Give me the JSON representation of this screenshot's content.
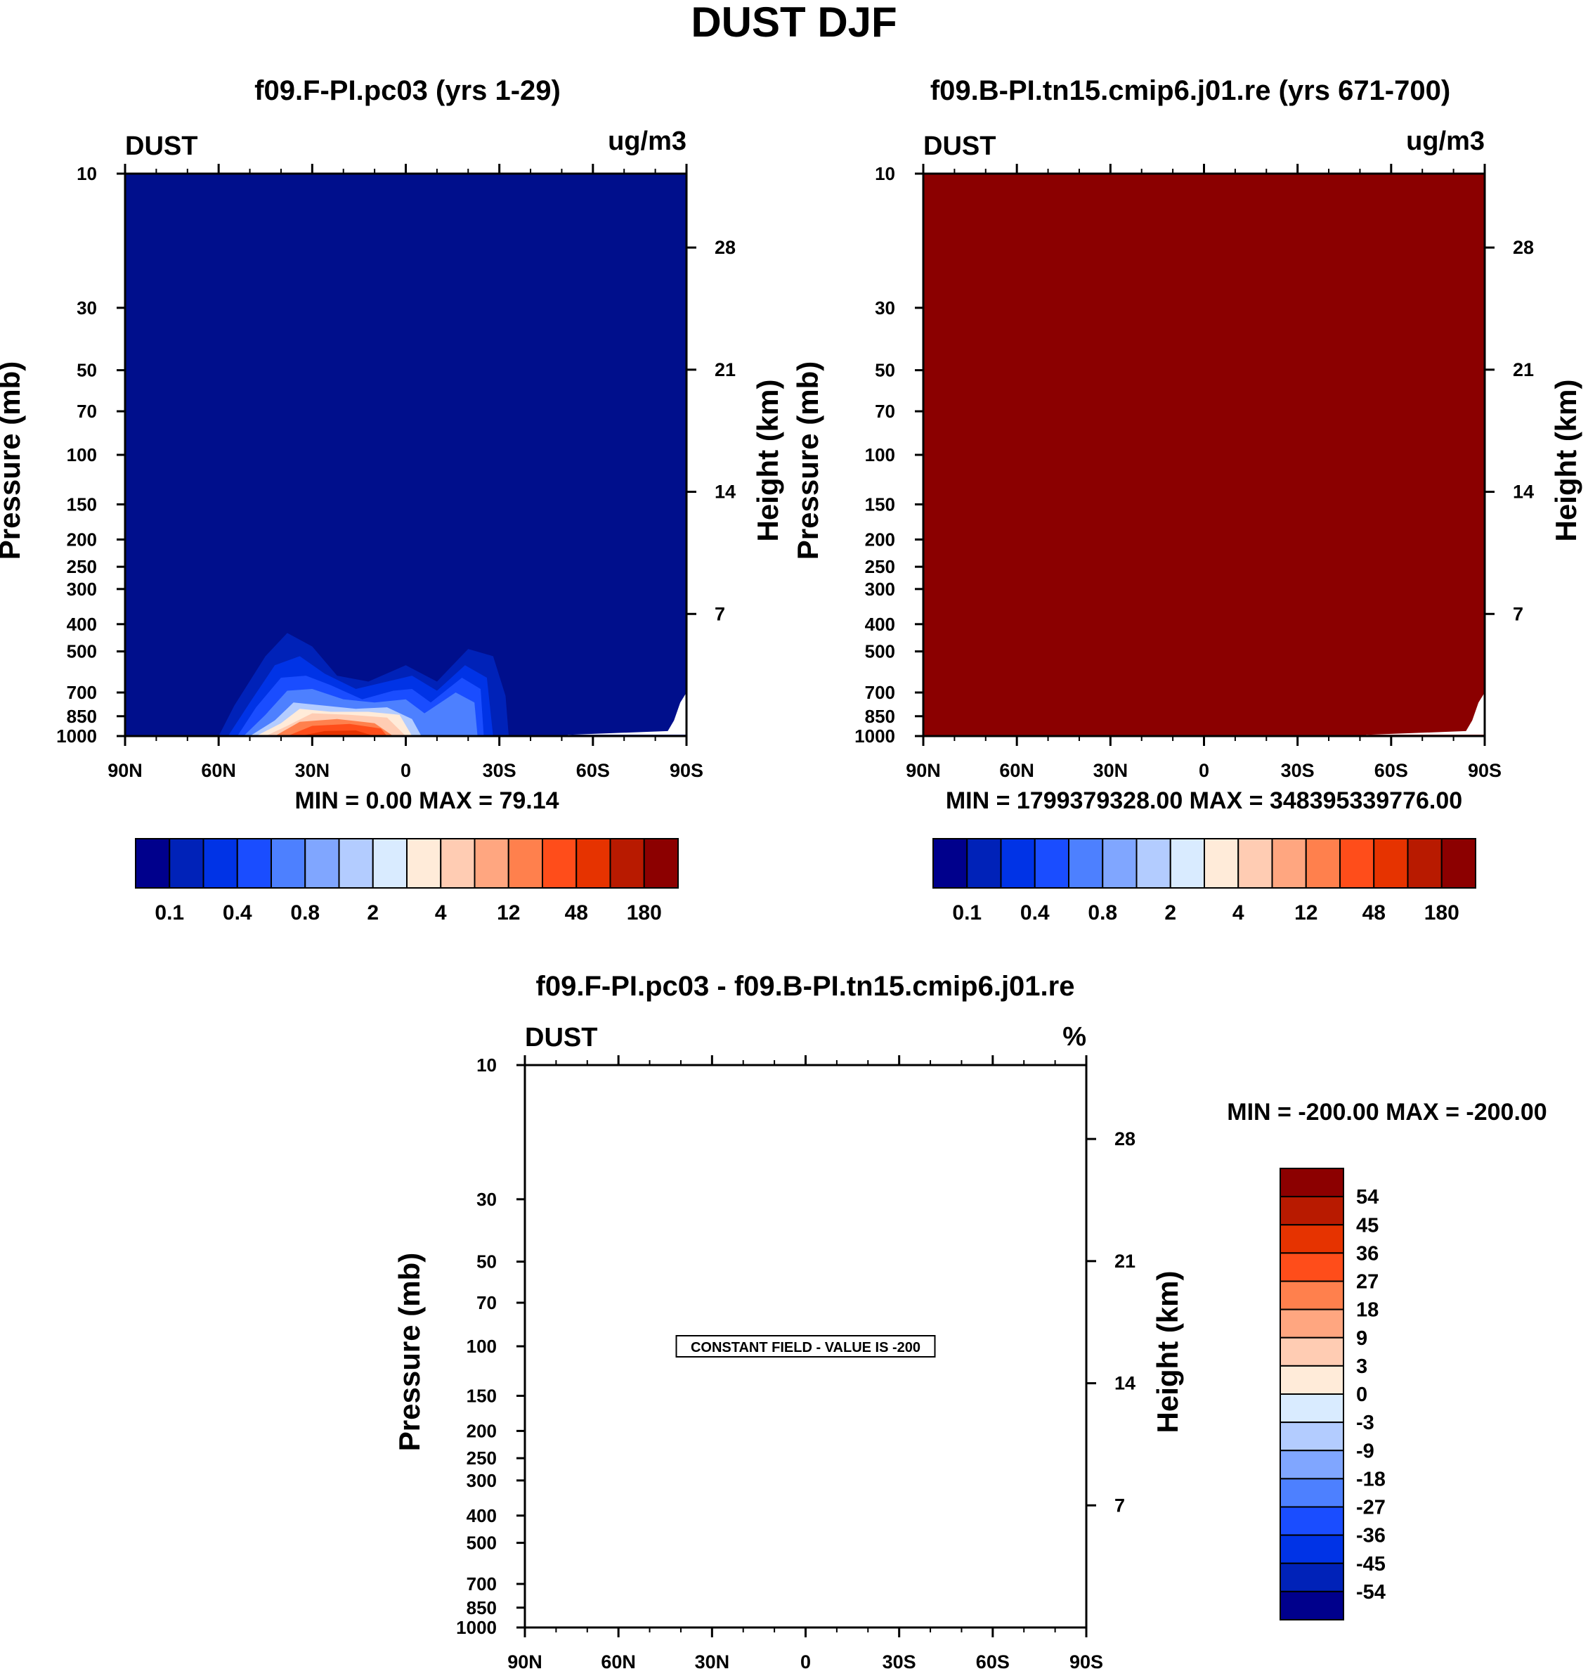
{
  "figure": {
    "title": "DUST DJF",
    "colors": {
      "field_left": "#000f8c",
      "field_right": "#8b0000",
      "frame": "#000000"
    }
  },
  "chart_data": [
    {
      "type": "heatmap",
      "id": "panel_a",
      "title": "f09.F-PI.pc03 (yrs 1-29)",
      "variable": "DUST",
      "units": "ug/m3",
      "xlabel": "",
      "ylabel": "Pressure (mb)",
      "ylabel_right": "Height (km)",
      "x_ticks": [
        "90N",
        "60N",
        "30N",
        "0",
        "30S",
        "60S",
        "90S"
      ],
      "y_ticks": [
        10,
        30,
        50,
        70,
        100,
        150,
        200,
        250,
        300,
        400,
        500,
        700,
        850,
        1000
      ],
      "y_range_mb": [
        10,
        1000
      ],
      "height_ticks_km": [
        28,
        21,
        14,
        7
      ],
      "stats_text": "MIN =   0.00  MAX =  79.14",
      "min": 0.0,
      "max": 79.14,
      "background_level": "<0.1",
      "features": [
        {
          "lat_range": [
            "60N",
            "22S"
          ],
          "top_mb": 400,
          "peak_lat": "25N",
          "peak_level": ">=48"
        }
      ],
      "colorbar": {
        "orientation": "horizontal",
        "labels": [
          "0.1",
          "0.4",
          "0.8",
          "2",
          "4",
          "12",
          "48",
          "180"
        ],
        "colors": [
          "#00008c",
          "#0022b8",
          "#0033e6",
          "#1a4dff",
          "#4d80ff",
          "#80a6ff",
          "#b3ccff",
          "#d9ebff",
          "#ffebd9",
          "#ffccb3",
          "#ffa680",
          "#ff804d",
          "#ff4d1a",
          "#e63300",
          "#b81a00",
          "#8c0000"
        ]
      }
    },
    {
      "type": "heatmap",
      "id": "panel_b",
      "title": "f09.B-PI.tn15.cmip6.j01.re (yrs 671-700)",
      "variable": "DUST",
      "units": "ug/m3",
      "xlabel": "",
      "ylabel": "Pressure (mb)",
      "ylabel_right": "Height (km)",
      "x_ticks": [
        "90N",
        "60N",
        "30N",
        "0",
        "30S",
        "60S",
        "90S"
      ],
      "y_ticks": [
        10,
        30,
        50,
        70,
        100,
        150,
        200,
        250,
        300,
        400,
        500,
        700,
        850,
        1000
      ],
      "y_range_mb": [
        10,
        1000
      ],
      "height_ticks_km": [
        28,
        21,
        14,
        7
      ],
      "stats_text": "MIN = 1799379328.00  MAX = 348395339776.00",
      "min": 1799379328.0,
      "max": 348395339776.0,
      "background_level": ">180",
      "colorbar": {
        "orientation": "horizontal",
        "labels": [
          "0.1",
          "0.4",
          "0.8",
          "2",
          "4",
          "12",
          "48",
          "180"
        ],
        "colors": [
          "#00008c",
          "#0022b8",
          "#0033e6",
          "#1a4dff",
          "#4d80ff",
          "#80a6ff",
          "#b3ccff",
          "#d9ebff",
          "#ffebd9",
          "#ffccb3",
          "#ffa680",
          "#ff804d",
          "#ff4d1a",
          "#e63300",
          "#b81a00",
          "#8c0000"
        ]
      }
    },
    {
      "type": "heatmap",
      "id": "panel_diff",
      "title": "f09.F-PI.pc03 - f09.B-PI.tn15.cmip6.j01.re",
      "variable": "DUST",
      "units": "%",
      "xlabel": "",
      "ylabel": "Pressure (mb)",
      "ylabel_right": "Height (km)",
      "x_ticks": [
        "90N",
        "60N",
        "30N",
        "0",
        "30S",
        "60S",
        "90S"
      ],
      "y_ticks": [
        10,
        30,
        50,
        70,
        100,
        150,
        200,
        250,
        300,
        400,
        500,
        700,
        850,
        1000
      ],
      "y_range_mb": [
        10,
        1000
      ],
      "height_ticks_km": [
        28,
        21,
        14,
        7
      ],
      "stats_text": "MIN = -200.00  MAX = -200.00",
      "min": -200.0,
      "max": -200.0,
      "annotation": "CONSTANT FIELD - VALUE IS -200",
      "colorbar": {
        "orientation": "vertical",
        "labels": [
          "54",
          "45",
          "36",
          "27",
          "18",
          "9",
          "3",
          "0",
          "-3",
          "-9",
          "-18",
          "-27",
          "-36",
          "-45",
          "-54"
        ],
        "colors": [
          "#8c0000",
          "#b81a00",
          "#e63300",
          "#ff4d1a",
          "#ff804d",
          "#ffa680",
          "#ffccb3",
          "#ffebd9",
          "#d9ebff",
          "#b3ccff",
          "#80a6ff",
          "#4d80ff",
          "#1a4dff",
          "#0033e6",
          "#0022b8",
          "#00008c"
        ]
      }
    }
  ]
}
